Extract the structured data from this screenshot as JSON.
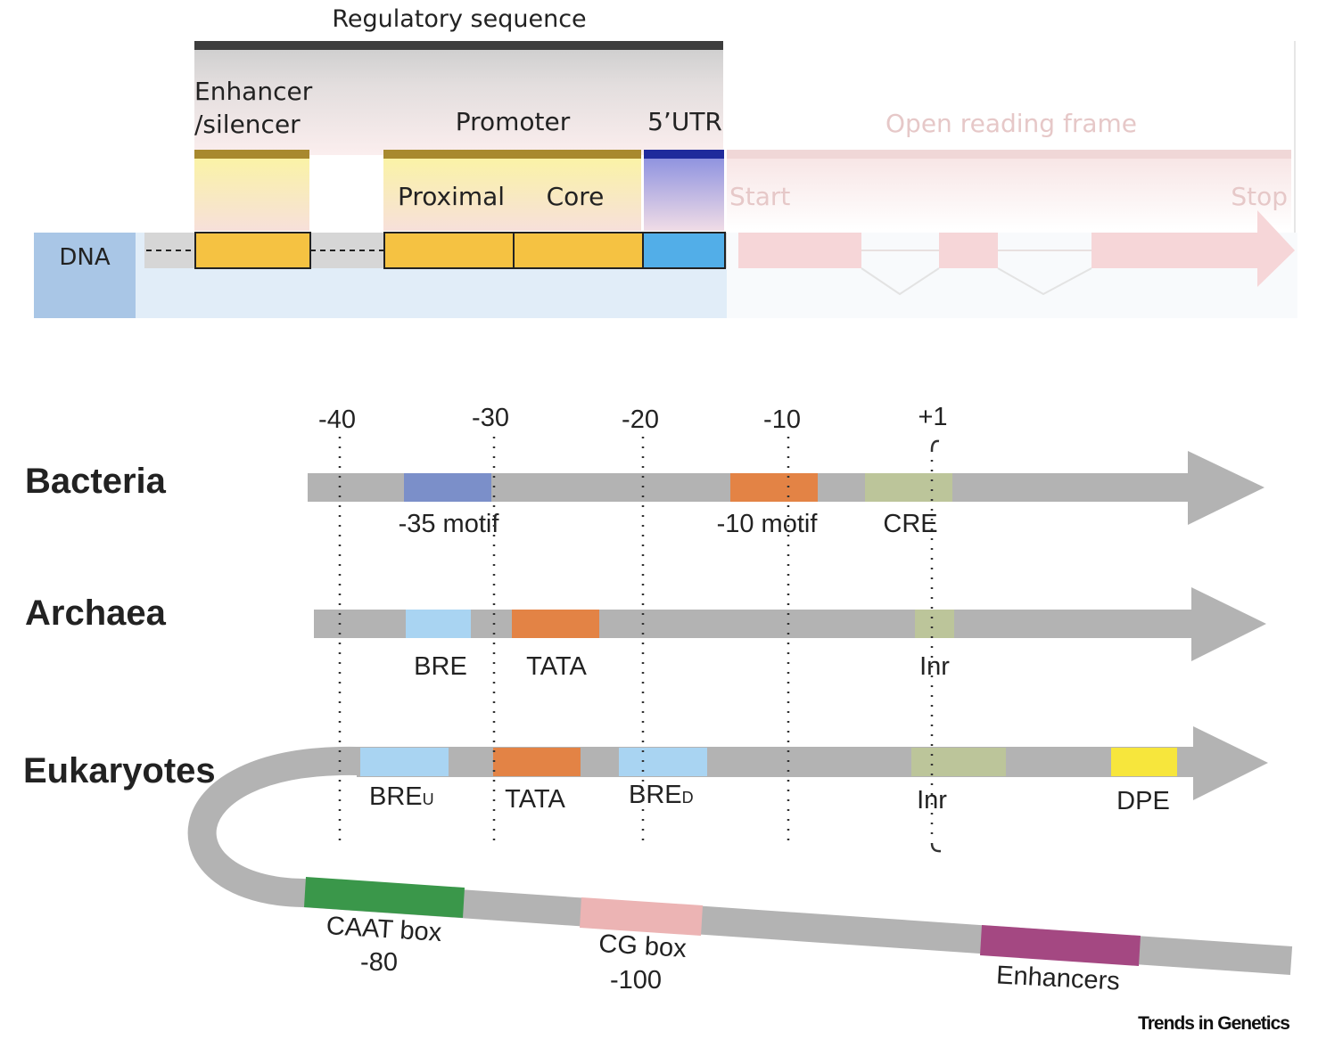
{
  "top": {
    "regulatory_sequence": "Regulatory sequence",
    "enhancer_line1": "Enhancer",
    "enhancer_line2": "/silencer",
    "promoter": "Promoter",
    "utr": "5’UTR",
    "orf": "Open reading frame",
    "proximal": "Proximal",
    "core": "Core",
    "start": "Start",
    "stop": "Stop",
    "dna": "DNA"
  },
  "ruler": {
    "ticks": [
      "-40",
      "-30",
      "-20",
      "-10",
      "+1"
    ]
  },
  "rows": {
    "bacteria": {
      "name": "Bacteria",
      "motifs": [
        "-35 motif",
        "-10 motif",
        "CRE"
      ]
    },
    "archaea": {
      "name": "Archaea",
      "motifs": [
        "BRE",
        "TATA",
        "Inr"
      ]
    },
    "eukaryotes": {
      "name": "Eukaryotes",
      "bre_u": "BRE",
      "bre_u_sub": "U",
      "tata": "TATA",
      "bre_d": "BRE",
      "bre_d_sub": "D",
      "inr": "Inr",
      "dpe": "DPE",
      "caat_line1": "CAAT box",
      "caat_line2": "-80",
      "cg_line1": "CG box",
      "cg_line2": "-100",
      "enhancers": "Enhancers"
    }
  },
  "credit": "Trends in Genetics",
  "colors": {
    "backbone": "#b3b3b3",
    "gold": "#f5c242",
    "olive": "#a8892e",
    "utr_blue": "#52aee8",
    "navy": "#1f2a9c",
    "dna_blue": "#a9c6e6",
    "minus35": "#7b8fc9",
    "orange": "#e38345",
    "sage": "#bcc59a",
    "light_blue": "#a9d4f2",
    "yellow": "#f7e63c",
    "green": "#3a974a",
    "pink": "#ecb4b4",
    "magenta": "#a44882"
  }
}
